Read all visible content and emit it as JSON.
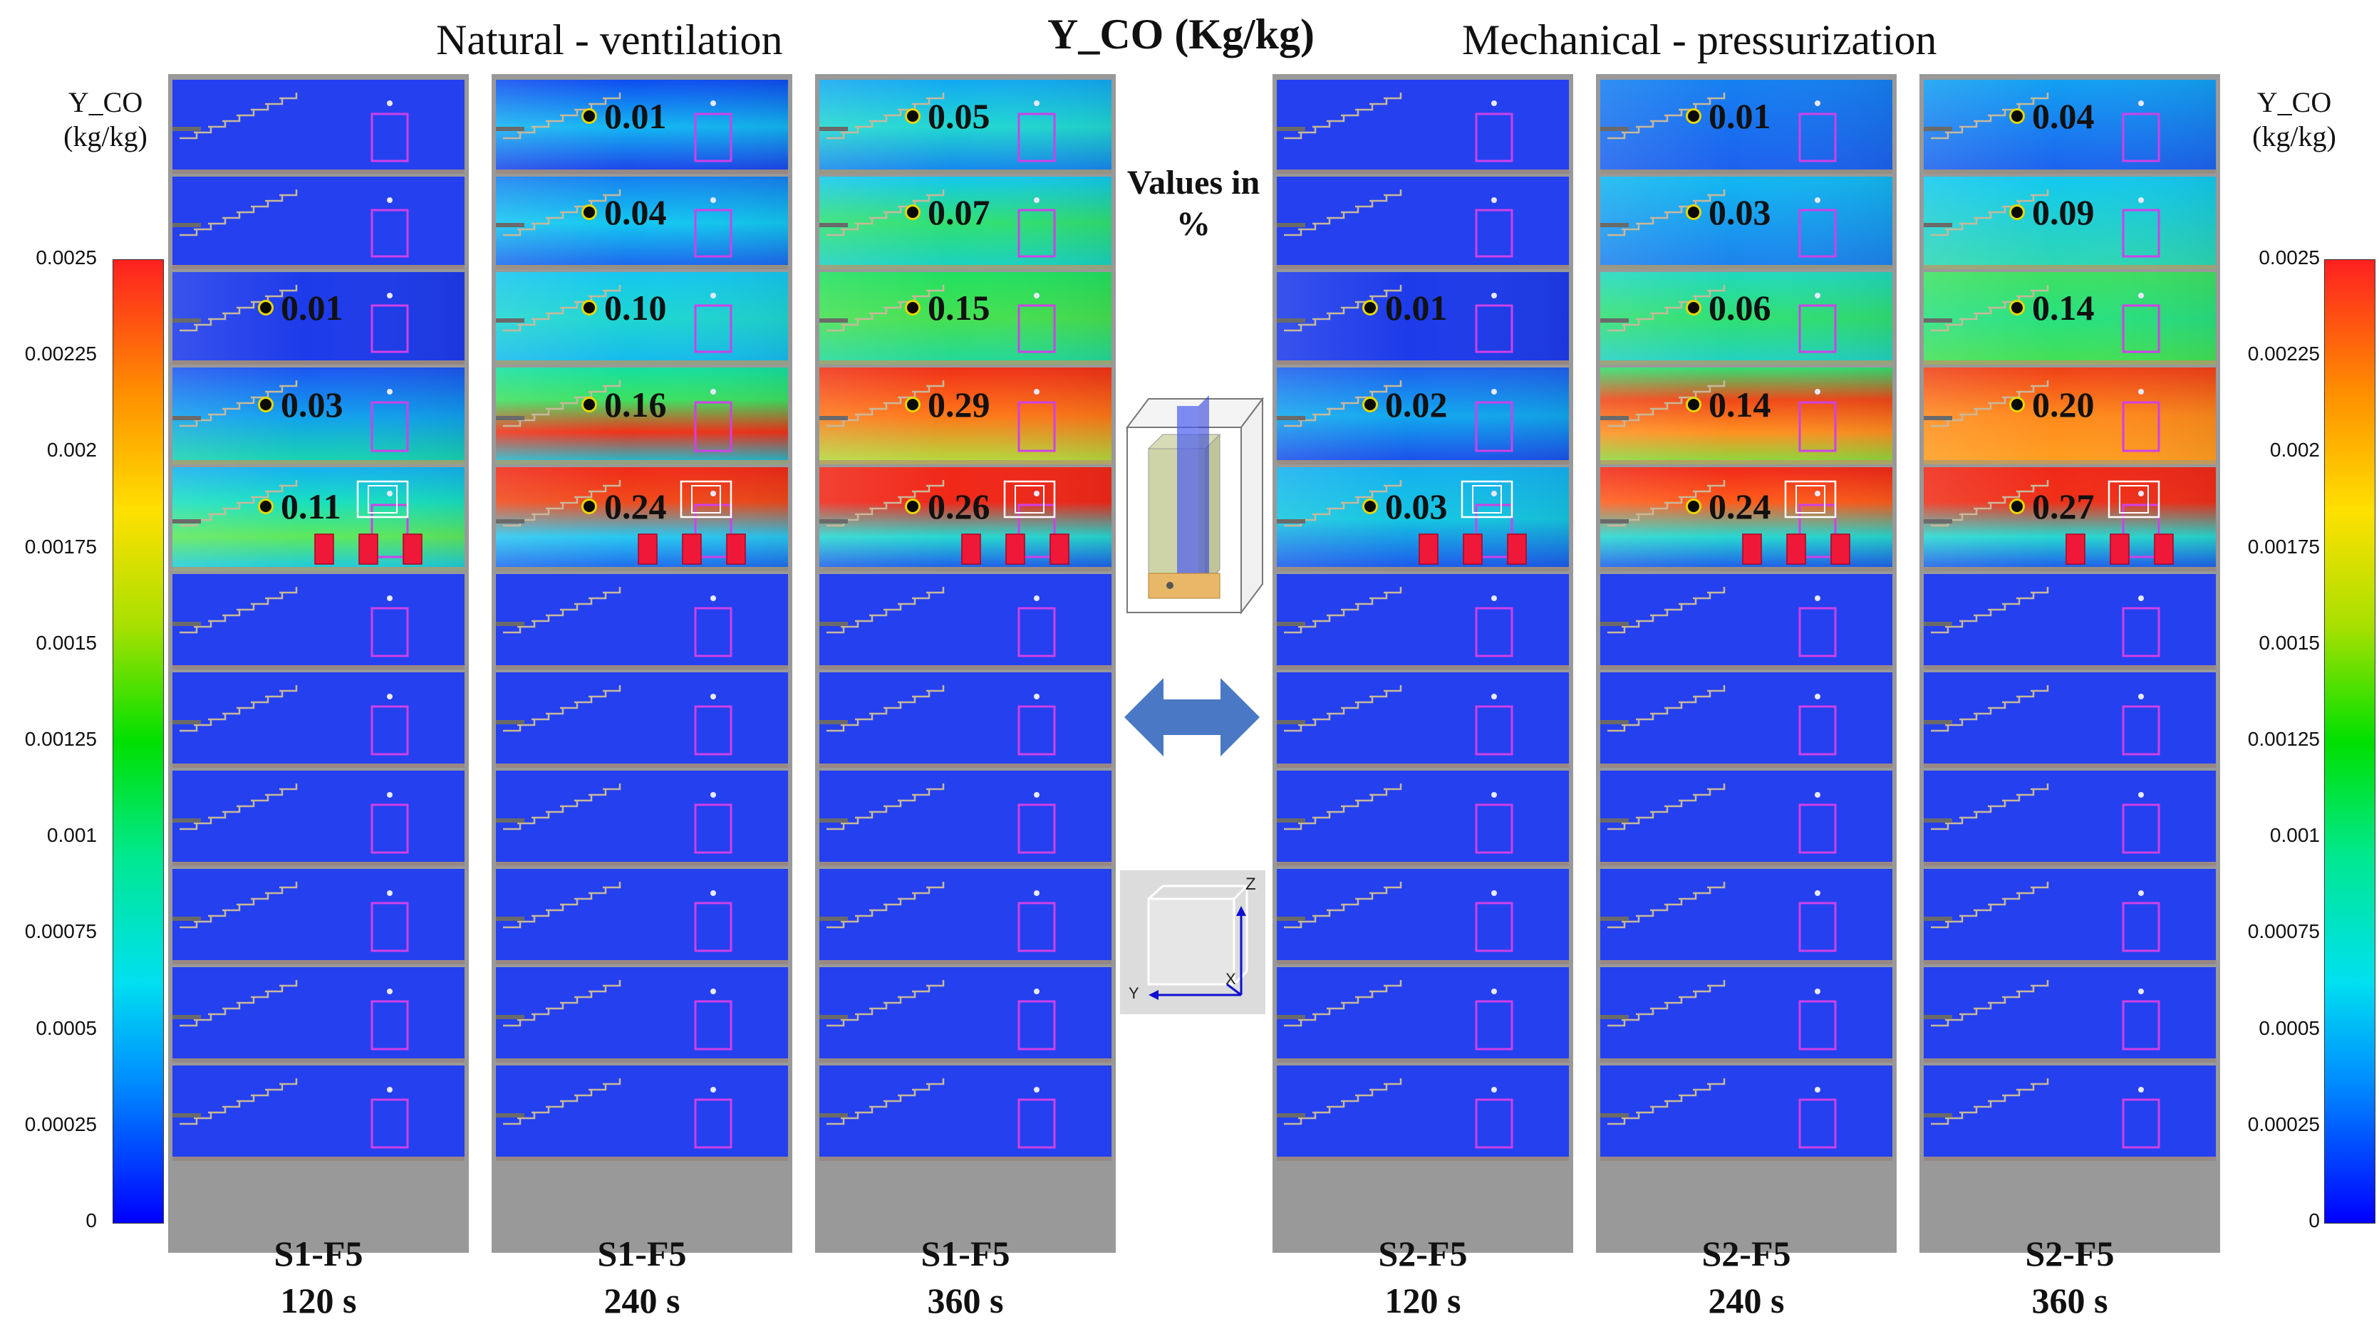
{
  "titles": {
    "natural": "Natural - ventilation",
    "main": "Y_CO (Kg/kg)",
    "mechanical": "Mechanical  - pressurization"
  },
  "colorbar": {
    "label_line1": "Y_CO",
    "label_line2": "(kg/kg)",
    "left_ticks": [
      "0.0025",
      "0.00225",
      "0.002",
      "0.00175",
      "0.0015",
      "0.00125",
      "0.001",
      "0.00075",
      "0.0005",
      "0.00025",
      "0"
    ],
    "right_ticks": [
      "0.0025",
      "0.00225",
      "0.002",
      "0.00175",
      "0.0015",
      "0.00125",
      "0.001",
      "0.00075",
      "0.0005",
      "0.00025",
      "0"
    ],
    "colors": [
      "#0000ff",
      "#00e0f0",
      "#00e000",
      "#ffe000",
      "#ff2020"
    ]
  },
  "values_note": {
    "line1": "Values in",
    "line2": "%"
  },
  "panels": [
    {
      "scenario": "S1-F5",
      "time": "120 s",
      "values": [
        "",
        "",
        "0.01",
        "0.03",
        "0.11"
      ]
    },
    {
      "scenario": "S1-F5",
      "time": "240 s",
      "values": [
        "0.01",
        "0.04",
        "0.10",
        "0.16",
        "0.24"
      ]
    },
    {
      "scenario": "S1-F5",
      "time": "360 s",
      "values": [
        "0.05",
        "0.07",
        "0.15",
        "0.29",
        "0.26"
      ]
    },
    {
      "scenario": "S2-F5",
      "time": "120 s",
      "values": [
        "",
        "",
        "0.01",
        "0.02",
        "0.03"
      ]
    },
    {
      "scenario": "S2-F5",
      "time": "240 s",
      "values": [
        "0.01",
        "0.03",
        "0.06",
        "0.14",
        "0.24"
      ]
    },
    {
      "scenario": "S2-F5",
      "time": "360 s",
      "values": [
        "0.04",
        "0.09",
        "0.14",
        "0.20",
        "0.27"
      ]
    }
  ],
  "axes_labels": {
    "z": "Z",
    "x": "X",
    "y": "Y"
  },
  "icons": [
    "double-arrow-icon",
    "building-3d-icon",
    "axes-triad-icon"
  ]
}
